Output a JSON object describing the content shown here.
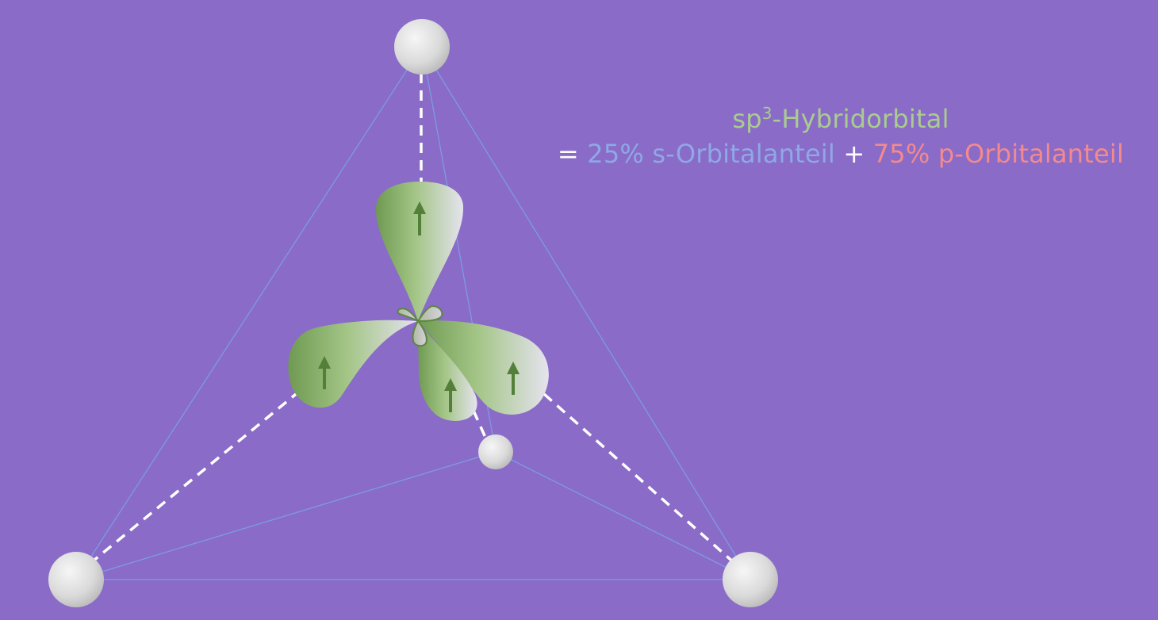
{
  "colors": {
    "background": "#8a6bc8",
    "edge": "#7d9be2",
    "bond": "#ffffff",
    "lobe_dark": "#6f9a52",
    "lobe_light": "#e3e0ee",
    "arrow": "#537f39",
    "atom_light": "#f3f3f3",
    "atom_dark": "#b7b7b7",
    "hybrid_text": "#a9cd8e",
    "s_text": "#8fa8e6",
    "p_text": "#f48a8c"
  },
  "caption": {
    "title_base": "sp",
    "title_sup": "3",
    "title_rest": "-Hybridorbital",
    "equals": "=",
    "s_part": "25% s-Orbitalanteil",
    "plus": "+",
    "p_part": "75% p-Orbitalanteil"
  },
  "diagram": {
    "atoms": [
      "top-atom",
      "left-atom",
      "right-atom",
      "back-atom"
    ],
    "lobes": [
      "top-lobe",
      "left-lobe",
      "right-lobe",
      "front-lobe"
    ],
    "arrow_icon": "up-arrow-icon"
  }
}
